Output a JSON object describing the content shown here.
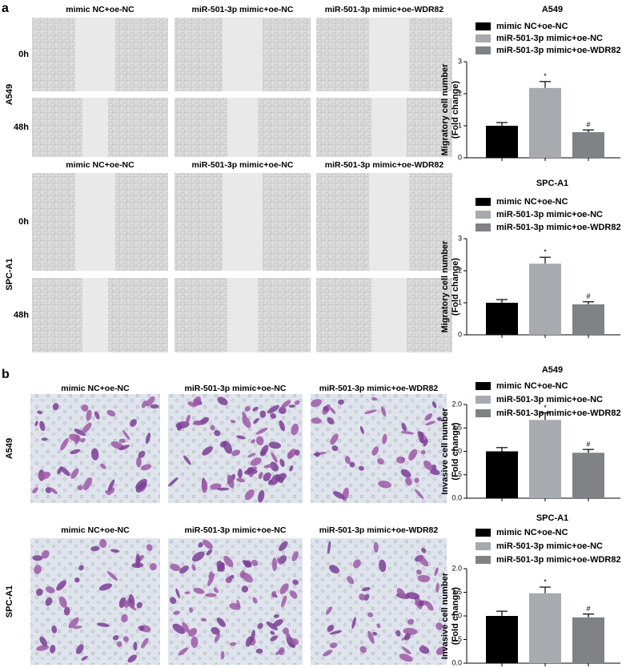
{
  "panel_a": {
    "label": "a",
    "blocks": [
      {
        "cell_line": "A549",
        "columns": [
          "mimic NC+oe-NC",
          "miR-501-3p mimic+oe-NC",
          "miR-501-3p mimic+oe-WDR82"
        ],
        "times": [
          "0h",
          "48h"
        ]
      },
      {
        "cell_line": "SPC-A1",
        "columns": [
          "mimic NC+oe-NC",
          "miR-501-3p mimic+oe-NC",
          "miR-501-3p mimic+oe-WDR82"
        ],
        "times": [
          "0h",
          "48h"
        ]
      }
    ]
  },
  "panel_b": {
    "label": "b",
    "blocks": [
      {
        "cell_line": "A549",
        "columns": [
          "mimic NC+oe-NC",
          "miR-501-3p mimic+oe-NC",
          "miR-501-3p mimic+oe-WDR82"
        ]
      },
      {
        "cell_line": "SPC-A1",
        "columns": [
          "mimic NC+oe-NC",
          "miR-501-3p mimic+oe-NC",
          "miR-501-3p mimic+oe-WDR82"
        ]
      }
    ]
  },
  "chart_data": [
    {
      "type": "bar",
      "title": "A549",
      "ylabel": [
        "Migratory cell number",
        "(Fold change)"
      ],
      "categories": [
        "mimic NC+oe-NC",
        "miR-501-3p mimic+oe-NC",
        "miR-501-3p mimic+oe-WDR82"
      ],
      "values": [
        1.0,
        2.18,
        0.8
      ],
      "errors": [
        0.1,
        0.2,
        0.07
      ],
      "significance": [
        null,
        "*",
        "#"
      ],
      "colors": [
        "#000000",
        "#a7aaae",
        "#808286"
      ],
      "ylim": [
        0,
        3
      ],
      "yticks": [
        0,
        1,
        2,
        3
      ]
    },
    {
      "type": "bar",
      "title": "SPC-A1",
      "ylabel": [
        "Migratory cell number",
        "(Fold change)"
      ],
      "categories": [
        "mimic NC+oe-NC",
        "miR-501-3p mimic+oe-NC",
        "miR-501-3p mimic+oe-WDR82"
      ],
      "values": [
        1.0,
        2.22,
        0.95
      ],
      "errors": [
        0.1,
        0.2,
        0.08
      ],
      "significance": [
        null,
        "*",
        "#"
      ],
      "colors": [
        "#000000",
        "#a7aaae",
        "#808286"
      ],
      "ylim": [
        0,
        3
      ],
      "yticks": [
        0,
        1,
        2,
        3
      ]
    },
    {
      "type": "bar",
      "title": "A549",
      "ylabel": [
        "Invasive cell number",
        "(Fold change)"
      ],
      "categories": [
        "mimic NC+oe-NC",
        "miR-501-3p mimic+oe-NC",
        "miR-501-3p mimic+oe-WDR82"
      ],
      "values": [
        1.0,
        1.67,
        0.97
      ],
      "errors": [
        0.08,
        0.15,
        0.07
      ],
      "significance": [
        null,
        "*",
        "#"
      ],
      "colors": [
        "#000000",
        "#a7aaae",
        "#808286"
      ],
      "ylim": [
        0,
        2
      ],
      "yticks": [
        {
          "value": 0,
          "label": "0.0"
        },
        0.5,
        {
          "value": 1,
          "label": "1.0"
        },
        1.5,
        {
          "value": 2,
          "label": "2.0"
        }
      ]
    },
    {
      "type": "bar",
      "title": "SPC-A1",
      "ylabel": [
        "Invasive cell number",
        "(Fold change)"
      ],
      "categories": [
        "mimic NC+oe-NC",
        "miR-501-3p mimic+oe-NC",
        "miR-501-3p mimic+oe-WDR82"
      ],
      "values": [
        1.0,
        1.48,
        0.97
      ],
      "errors": [
        0.1,
        0.13,
        0.07
      ],
      "significance": [
        null,
        "*",
        "#"
      ],
      "colors": [
        "#000000",
        "#a7aaae",
        "#808286"
      ],
      "ylim": [
        0,
        2
      ],
      "yticks": [
        {
          "value": 0,
          "label": "0.0"
        },
        0.5,
        {
          "value": 1,
          "label": "1.0"
        },
        1.5,
        {
          "value": 2,
          "label": "2.0"
        }
      ]
    }
  ]
}
